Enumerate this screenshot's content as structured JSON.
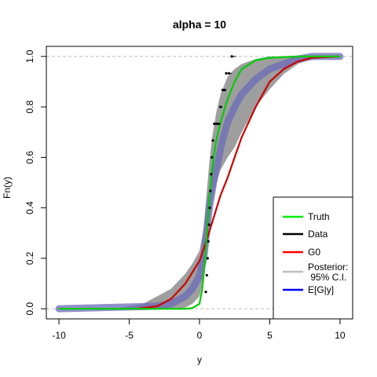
{
  "chart_data": {
    "type": "line",
    "title": "alpha = 10",
    "xlabel": "y",
    "ylabel": "Fn(y)",
    "xlim": [
      -10.9,
      10.9
    ],
    "ylim": [
      -0.04,
      1.04
    ],
    "x_ticks": [
      -10,
      -5,
      0,
      5,
      10
    ],
    "y_ticks": [
      0.0,
      0.2,
      0.4,
      0.6,
      0.8,
      1.0
    ],
    "x_tick_labels": [
      "-10",
      "-5",
      "0",
      "5",
      "10"
    ],
    "y_tick_labels": [
      "0.0",
      "0.2",
      "0.4",
      "0.6",
      "0.8",
      "1.0"
    ],
    "reference_lines_y": [
      0,
      1
    ],
    "legend_position": "bottom-right",
    "legend": [
      {
        "label": "Truth",
        "color": "#00ee00"
      },
      {
        "label": "Data",
        "color": "#000000"
      },
      {
        "label": "G0",
        "color": "#ff0000"
      },
      {
        "label": "Posterior:\n 95% C.I.",
        "color": "#bebebe"
      },
      {
        "label": "E[G|y]",
        "color": "#0000ff"
      }
    ],
    "series": [
      {
        "name": "Posterior: 95% C.I.",
        "kind": "band",
        "color": "#9e9e9e",
        "x": [
          -10,
          -6,
          -4,
          -3,
          -2,
          -1.5,
          -1,
          -0.5,
          0,
          0.3,
          0.5,
          0.7,
          0.9,
          1.2,
          1.5,
          2,
          2.5,
          3,
          4,
          5,
          6,
          7,
          8,
          10
        ],
        "lower": [
          0,
          0,
          0,
          0,
          0,
          0,
          0.005,
          0.02,
          0.05,
          0.12,
          0.22,
          0.33,
          0.42,
          0.5,
          0.55,
          0.6,
          0.64,
          0.7,
          0.8,
          0.87,
          0.93,
          0.97,
          0.99,
          1.0
        ],
        "upper": [
          0,
          0,
          0.02,
          0.05,
          0.08,
          0.11,
          0.14,
          0.18,
          0.23,
          0.32,
          0.45,
          0.58,
          0.68,
          0.78,
          0.85,
          0.92,
          0.95,
          0.97,
          0.99,
          1.0,
          1.0,
          1.0,
          1.0,
          1.0
        ]
      },
      {
        "name": "E[G|y]",
        "kind": "posterior_mean",
        "color": "#6b6bb8",
        "x": [
          -10,
          -3,
          -2,
          -1,
          -0.5,
          0,
          0.3,
          0.5,
          0.7,
          1,
          1.3,
          1.6,
          2,
          2.5,
          3,
          4,
          5,
          6,
          7,
          8,
          10
        ],
        "y": [
          0,
          0.01,
          0.02,
          0.05,
          0.08,
          0.13,
          0.2,
          0.3,
          0.4,
          0.5,
          0.58,
          0.66,
          0.74,
          0.8,
          0.85,
          0.91,
          0.95,
          0.97,
          0.99,
          1.0,
          1.0
        ]
      },
      {
        "name": "G0",
        "kind": "prior",
        "color": "#cc0000",
        "x": [
          -4.5,
          -3,
          -2,
          -1,
          0,
          0.5,
          1,
          1.5,
          2,
          2.5,
          3,
          4,
          5,
          6,
          7,
          8,
          10
        ],
        "y": [
          0,
          0.01,
          0.04,
          0.1,
          0.19,
          0.27,
          0.36,
          0.45,
          0.52,
          0.6,
          0.68,
          0.8,
          0.9,
          0.95,
          0.98,
          0.995,
          1.0
        ]
      },
      {
        "name": "Truth",
        "kind": "truth",
        "color": "#00cc00",
        "x": [
          -10,
          -1,
          -0.5,
          0,
          0.2,
          0.4,
          0.6,
          0.8,
          1,
          1.2,
          1.5,
          2,
          2.5,
          3,
          4,
          5,
          7,
          10
        ],
        "y": [
          0,
          0.0,
          0.003,
          0.02,
          0.08,
          0.2,
          0.36,
          0.5,
          0.6,
          0.67,
          0.74,
          0.83,
          0.9,
          0.95,
          0.985,
          0.995,
          1.0,
          1.0
        ]
      },
      {
        "name": "Data",
        "kind": "ecdf",
        "color": "#000000",
        "x": [
          0.45,
          0.52,
          0.58,
          0.63,
          0.68,
          0.73,
          0.78,
          0.83,
          0.88,
          0.95,
          1.05,
          1.2,
          1.35,
          1.5,
          1.65,
          1.8,
          1.9,
          2.1,
          2.3
        ],
        "y": [
          0.067,
          0.133,
          0.2,
          0.267,
          0.333,
          0.4,
          0.467,
          0.533,
          0.6,
          0.667,
          0.733,
          0.733,
          0.733,
          0.8,
          0.867,
          0.867,
          0.933,
          0.933,
          1.0
        ]
      }
    ]
  }
}
